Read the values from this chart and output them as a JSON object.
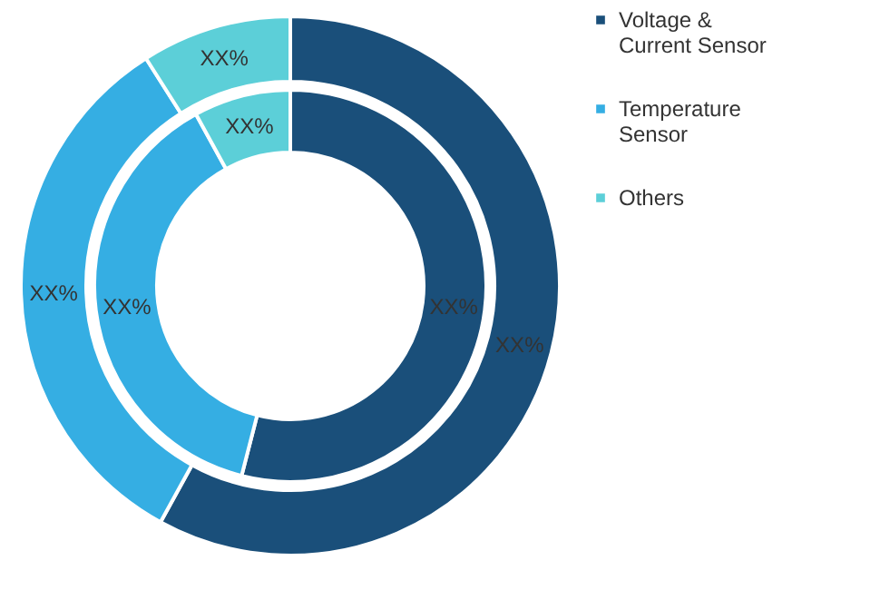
{
  "chart_data": {
    "type": "donut",
    "categories": [
      "Voltage & Current Sensor",
      "Temperature Sensor",
      "Others"
    ],
    "colors": [
      "#1a4f7a",
      "#35aee3",
      "#5ccfd8"
    ],
    "series": [
      {
        "values": [
          58,
          33,
          9
        ],
        "value_labels": [
          "XX%",
          "XX%",
          "XX%"
        ]
      },
      {
        "values": [
          54,
          38,
          8
        ],
        "value_labels": [
          "XX%",
          "XX%",
          "XX%"
        ]
      }
    ],
    "legend": "right"
  }
}
